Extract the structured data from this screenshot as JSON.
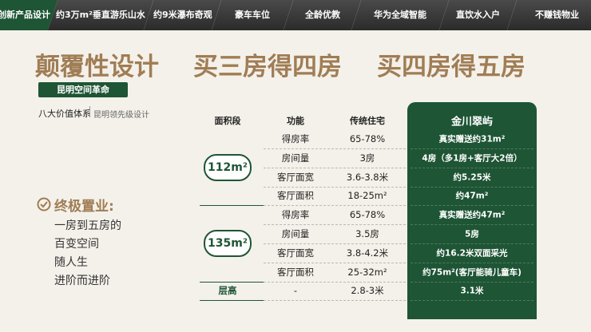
{
  "nav": [
    "创新产品设计",
    "约3万m²垂直游乐山水",
    "约9米瀑布奇观",
    "豪车车位",
    "全龄优教",
    "华为全域智能",
    "直饮水入户",
    "不赚钱物业"
  ],
  "title": [
    "颠覆性设计",
    "买三房得四房",
    "买四房得五房"
  ],
  "badge": "昆明空间革命",
  "subtitle": {
    "main": "八大价值体系",
    "sub": "昆明领先级设计"
  },
  "callout": {
    "heading": "终极置业:",
    "lines": [
      "一房到五房的",
      "百变空间",
      "随人生",
      "进阶而进阶"
    ]
  },
  "table": {
    "headers": [
      "面积段",
      "功能",
      "传统住宅",
      "金川翠屿"
    ],
    "groups": [
      {
        "area": "112m²",
        "rows": [
          [
            "得房率",
            "65-78%",
            "真实赠送约31m²"
          ],
          [
            "房间量",
            "3房",
            "4房（多1房+客厅大2倍）"
          ],
          [
            "客厅面宽",
            "3.6-3.8米",
            "约5.25米"
          ],
          [
            "客厅面积",
            "18-25m²",
            "约47m²"
          ]
        ]
      },
      {
        "area": "135m²",
        "rows": [
          [
            "得房率",
            "65-78%",
            "真实赠送约47m²"
          ],
          [
            "房间量",
            "3.5房",
            "5房"
          ],
          [
            "客厅面宽",
            "3.8-4.2米",
            "约16.2米双面采光"
          ],
          [
            "客厅面积",
            "25-32m²",
            "约75m²(客厅能骑儿童车)"
          ]
        ]
      },
      {
        "area": "层高",
        "rows": [
          [
            "-",
            "2.8-3米",
            "3.1米"
          ]
        ]
      }
    ]
  }
}
